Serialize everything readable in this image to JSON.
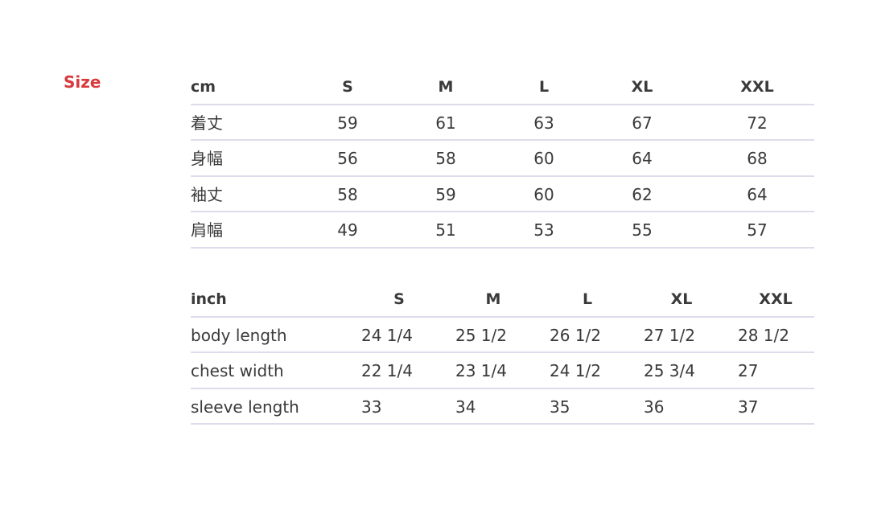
{
  "title": "Size",
  "cm_table": {
    "headers": [
      "cm",
      "S",
      "M",
      "L",
      "XL",
      "XXL"
    ],
    "rows": [
      [
        "着丈",
        "59",
        "61",
        "63",
        "67",
        "72"
      ],
      [
        "身幅",
        "56",
        "58",
        "60",
        "64",
        "68"
      ],
      [
        "袖丈",
        "58",
        "59",
        "60",
        "62",
        "64"
      ],
      [
        "肩幅",
        "49",
        "51",
        "53",
        "55",
        "57"
      ]
    ]
  },
  "inch_table": {
    "headers": [
      "inch",
      "S",
      "M",
      "L",
      "XL",
      "XXL"
    ],
    "rows": [
      [
        "body length",
        "24 1/4",
        "25 1/2",
        "26 1/2",
        "27 1/2",
        "28 1/2"
      ],
      [
        "chest width",
        "22 1/4",
        "23 1/4",
        "24 1/2",
        "25 3/4",
        "27"
      ],
      [
        "sleeve length",
        "33",
        "34",
        "35",
        "36",
        "37"
      ]
    ]
  },
  "colors": {
    "title": "#d9383d",
    "divider": "#dedcec",
    "text": "#3a3a3a"
  }
}
